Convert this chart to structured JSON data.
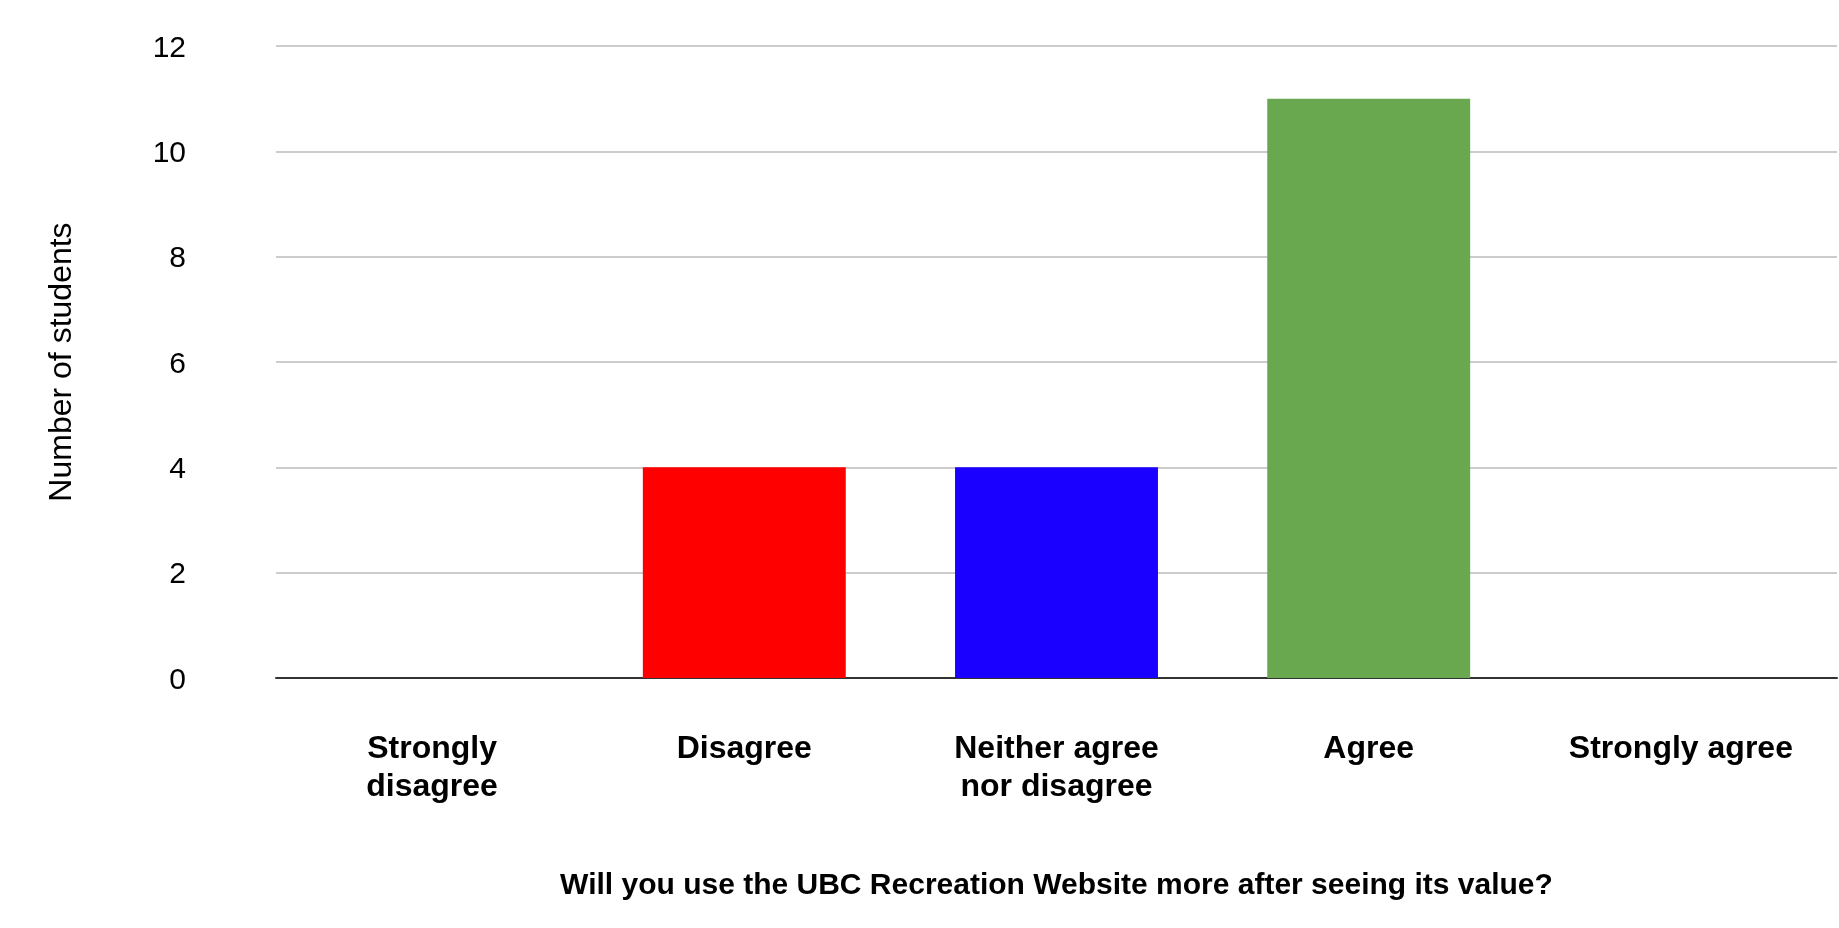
{
  "chart_data": {
    "type": "bar",
    "xlabel": "Will you use the UBC Recreation Website more after seeing its value?",
    "ylabel": "Number of students",
    "categories": [
      "Strongly\ndisagree",
      "Disagree",
      "Neither agree\nnor disagree",
      "Agree",
      "Strongly agree"
    ],
    "values": [
      0,
      4,
      4,
      11,
      0
    ],
    "colors": [
      "#990000",
      "#ff0000",
      "#1a00ff",
      "#6aa84f",
      "#6d9eeb"
    ],
    "ylim": [
      0,
      12
    ],
    "yticks": [
      0,
      2,
      4,
      6,
      8,
      10,
      12
    ],
    "grid": "y"
  }
}
